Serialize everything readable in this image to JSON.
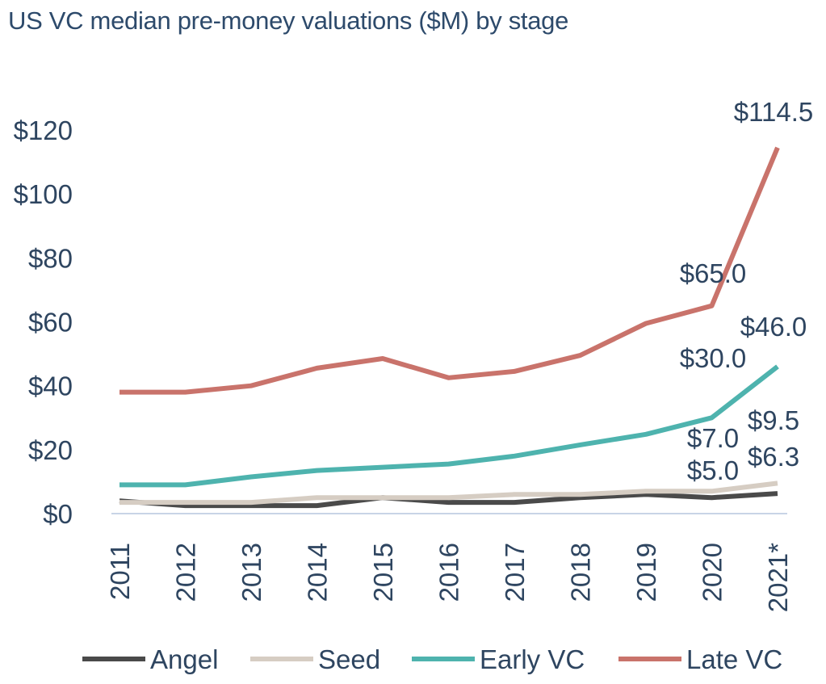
{
  "chart_data": {
    "type": "line",
    "title": "US VC median pre-money valuations ($M) by stage",
    "categories": [
      "2011",
      "2012",
      "2013",
      "2014",
      "2015",
      "2016",
      "2017",
      "2018",
      "2019",
      "2020",
      "2021*"
    ],
    "ylim": [
      0,
      120
    ],
    "yticks": [
      "$0",
      "$20",
      "$40",
      "$60",
      "$80",
      "$100",
      "$120"
    ],
    "grid": false,
    "legend": "bottom",
    "series": [
      {
        "name": "Angel",
        "color": "#4a4a4a",
        "values": [
          4.0,
          2.5,
          2.5,
          2.5,
          5.0,
          3.5,
          3.5,
          5.0,
          6.0,
          5.0,
          6.3
        ]
      },
      {
        "name": "Seed",
        "color": "#d6cdc3",
        "values": [
          3.5,
          3.5,
          3.5,
          5.0,
          5.0,
          5.0,
          6.0,
          6.0,
          7.0,
          7.0,
          9.5
        ]
      },
      {
        "name": "Early VC",
        "color": "#4eb3ae",
        "values": [
          9.0,
          9.0,
          11.5,
          13.5,
          14.5,
          15.5,
          18.0,
          21.5,
          24.8,
          30.0,
          46.0
        ]
      },
      {
        "name": "Late VC",
        "color": "#c9736b",
        "values": [
          38.0,
          38.0,
          40.0,
          45.5,
          48.5,
          42.5,
          44.5,
          49.5,
          59.5,
          65.0,
          114.5
        ]
      }
    ],
    "annotations": [
      {
        "series": "Late VC",
        "index": 10,
        "text": "$114.5"
      },
      {
        "series": "Late VC",
        "index": 9,
        "text": "$65.0"
      },
      {
        "series": "Early VC",
        "index": 10,
        "text": "$46.0"
      },
      {
        "series": "Early VC",
        "index": 9,
        "text": "$30.0"
      },
      {
        "series": "Seed",
        "index": 10,
        "text": "$9.5"
      },
      {
        "series": "Seed",
        "index": 9,
        "text": "$7.0"
      },
      {
        "series": "Angel",
        "index": 10,
        "text": "$6.3"
      },
      {
        "series": "Angel",
        "index": 9,
        "text": "$5.0"
      }
    ]
  }
}
